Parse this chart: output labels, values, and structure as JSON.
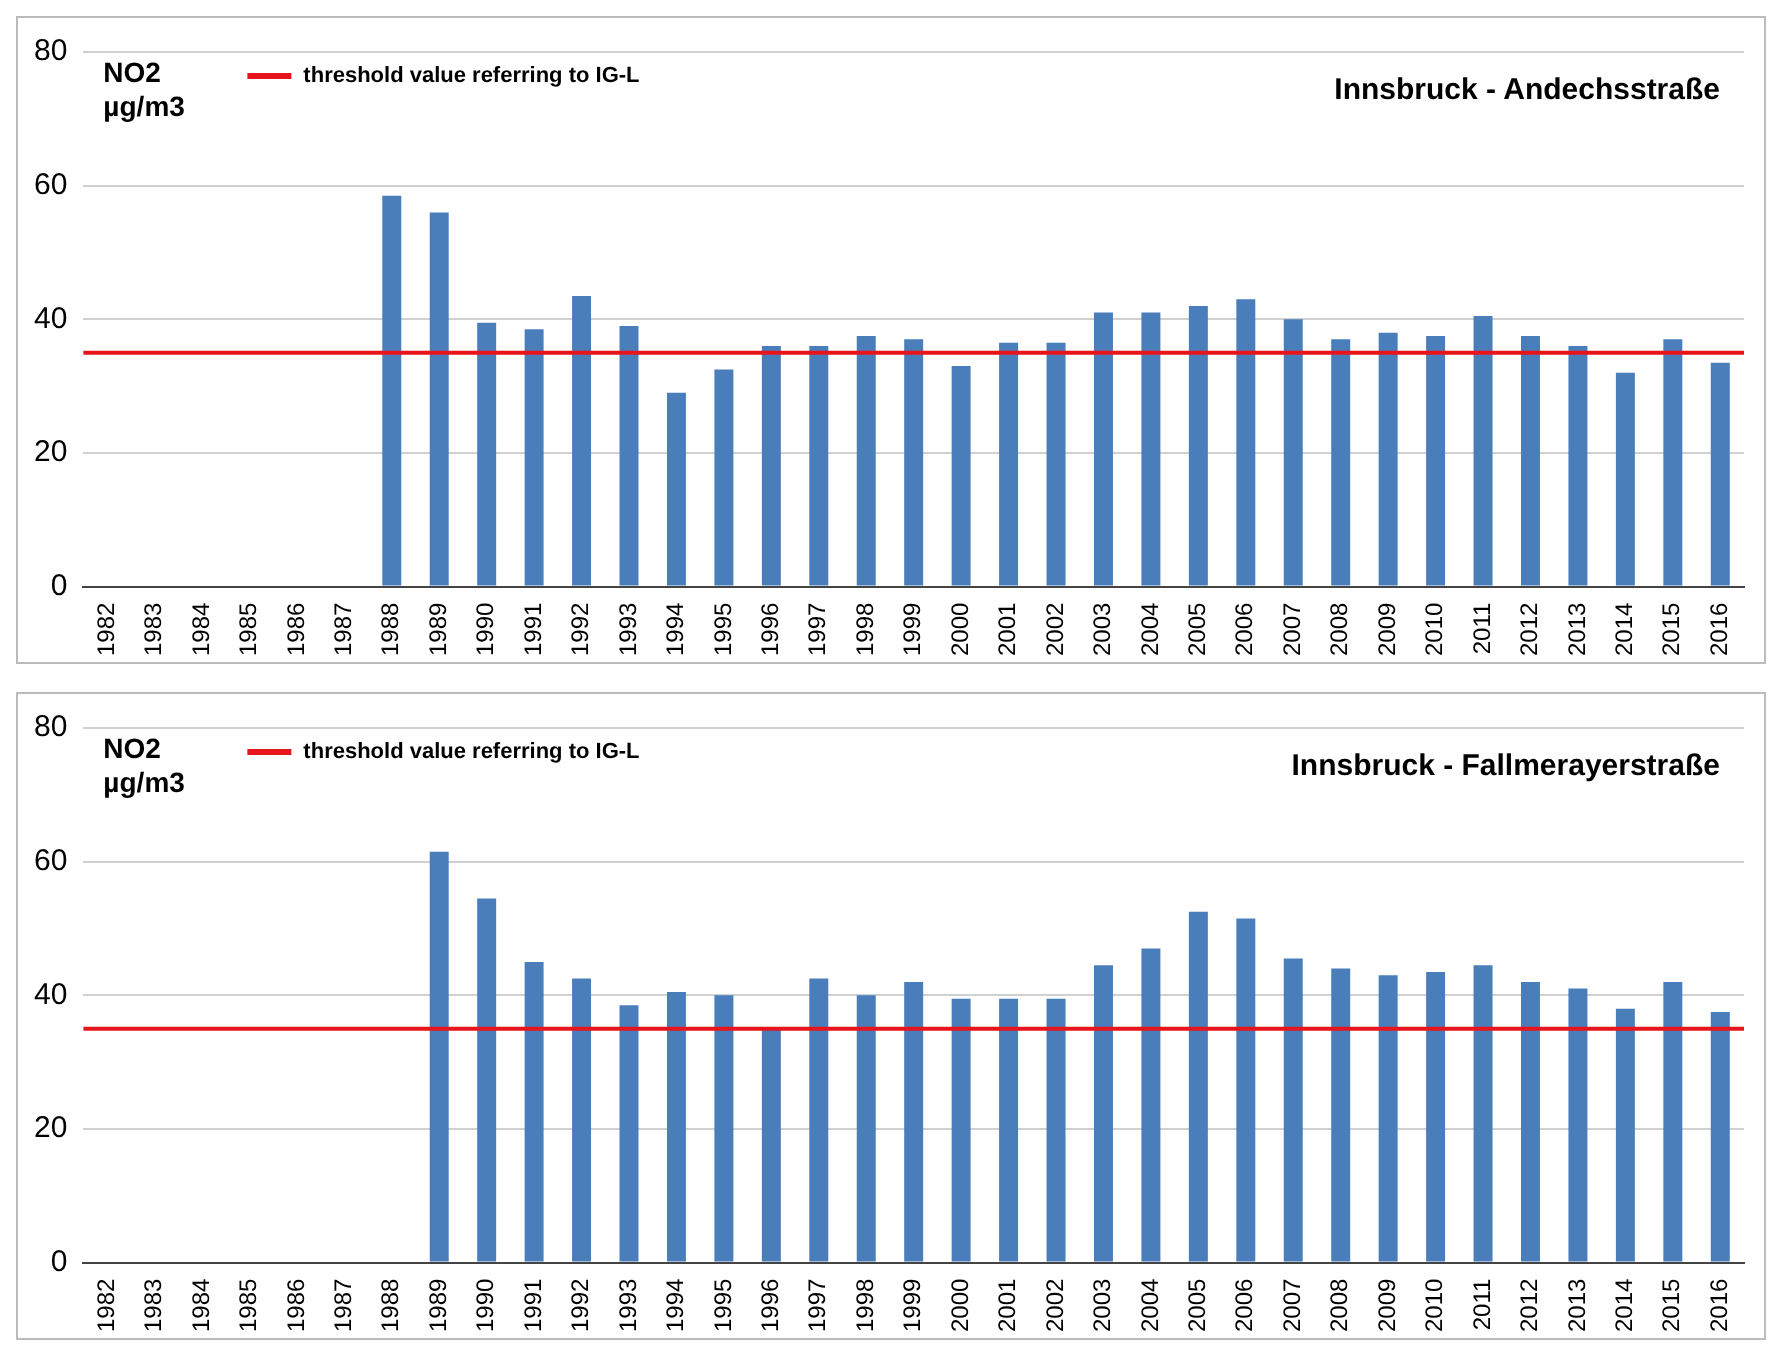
{
  "chart_data": [
    {
      "type": "bar",
      "title": "Innsbruck - Andechsstraße",
      "ylabel": "NO2\nµg/m3",
      "categories": [
        "1982",
        "1983",
        "1984",
        "1985",
        "1986",
        "1987",
        "1988",
        "1989",
        "1990",
        "1991",
        "1992",
        "1993",
        "1994",
        "1995",
        "1996",
        "1997",
        "1998",
        "1999",
        "2000",
        "2001",
        "2002",
        "2003",
        "2004",
        "2005",
        "2006",
        "2007",
        "2008",
        "2009",
        "2010",
        "2011",
        "2012",
        "2013",
        "2014",
        "2015",
        "2016"
      ],
      "values": [
        null,
        null,
        null,
        null,
        null,
        null,
        58.5,
        56,
        39.5,
        38.5,
        43.5,
        39,
        29,
        32.5,
        36,
        36,
        37.5,
        37,
        33,
        36.5,
        36.5,
        41,
        41,
        42,
        43,
        40,
        37,
        38,
        37.5,
        40.5,
        37.5,
        36,
        32,
        37,
        33.5
      ],
      "color": "#4a7ebb",
      "ylim": [
        0,
        80
      ],
      "yticks": [
        0,
        20,
        40,
        60,
        80
      ],
      "grid": "y",
      "ref_lines": [
        {
          "axis": "y",
          "value": 35,
          "label": "threshold value referring to IG-L",
          "color": "#e8141b"
        }
      ]
    },
    {
      "type": "bar",
      "title": "Innsbruck - Fallmerayerstraße",
      "ylabel": "NO2\nµg/m3",
      "categories": [
        "1982",
        "1983",
        "1984",
        "1985",
        "1986",
        "1987",
        "1988",
        "1989",
        "1990",
        "1991",
        "1992",
        "1993",
        "1994",
        "1995",
        "1996",
        "1997",
        "1998",
        "1999",
        "2000",
        "2001",
        "2002",
        "2003",
        "2004",
        "2005",
        "2006",
        "2007",
        "2008",
        "2009",
        "2010",
        "2011",
        "2012",
        "2013",
        "2014",
        "2015",
        "2016"
      ],
      "values": [
        null,
        null,
        null,
        null,
        null,
        null,
        null,
        61.5,
        54.5,
        45,
        42.5,
        38.5,
        40.5,
        40,
        35,
        42.5,
        40,
        42,
        39.5,
        39.5,
        39.5,
        44.5,
        47,
        52.5,
        51.5,
        45.5,
        44,
        43,
        43.5,
        44.5,
        42,
        41,
        38,
        42,
        37.5
      ],
      "color": "#4a7ebb",
      "ylim": [
        0,
        80
      ],
      "yticks": [
        0,
        20,
        40,
        60,
        80
      ],
      "grid": "y",
      "ref_lines": [
        {
          "axis": "y",
          "value": 35,
          "label": "threshold value referring to IG-L",
          "color": "#e8141b"
        }
      ]
    }
  ]
}
